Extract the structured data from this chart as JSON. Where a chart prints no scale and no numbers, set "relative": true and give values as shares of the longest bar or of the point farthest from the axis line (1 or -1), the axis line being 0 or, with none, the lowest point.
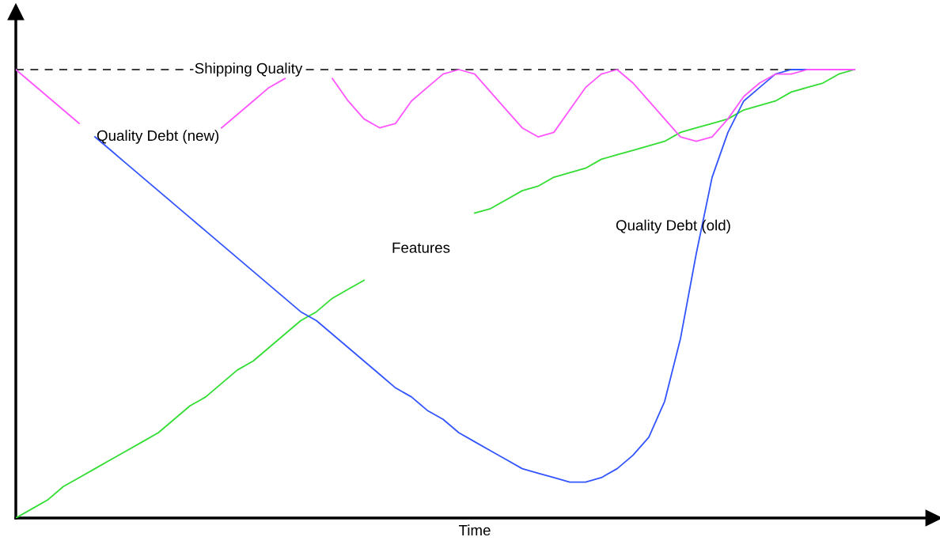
{
  "chart_data": {
    "type": "line",
    "relative": true,
    "xlabel": "Time",
    "categories": [
      null,
      null,
      null,
      null,
      null,
      null,
      null,
      null,
      null,
      null,
      null,
      null,
      null,
      null,
      null,
      null,
      null,
      null,
      null,
      null,
      null,
      null,
      null,
      null,
      null,
      null,
      null,
      null,
      null,
      null,
      null,
      null,
      null,
      null,
      null,
      null,
      null,
      null,
      null,
      null,
      null,
      null,
      null,
      null,
      null,
      null,
      null,
      null,
      null,
      null,
      null,
      null,
      null,
      null
    ],
    "series": [
      {
        "name": "Quality Debt (new)",
        "color": "#ff55ff",
        "values": [
          1,
          0.97,
          0.94,
          0.91,
          0.88,
          null,
          null,
          null,
          null,
          null,
          null,
          null,
          null,
          0.87,
          0.9,
          0.93,
          0.96,
          0.98,
          null,
          null,
          0.98,
          0.93,
          0.89,
          0.87,
          0.88,
          0.93,
          0.96,
          0.99,
          1,
          0.99,
          0.95,
          0.91,
          0.87,
          0.85,
          0.86,
          0.91,
          0.96,
          0.99,
          1,
          0.97,
          0.93,
          0.89,
          0.85,
          0.84,
          0.85,
          0.89,
          0.94,
          0.97,
          0.99,
          0.99,
          1,
          1,
          1,
          1
        ]
      },
      {
        "name": "Quality Debt (old)",
        "color": "#3355ff",
        "values": [
          null,
          null,
          null,
          null,
          null,
          0.85,
          0.82,
          0.79,
          0.76,
          0.73,
          0.7,
          0.67,
          0.64,
          0.61,
          0.58,
          0.55,
          0.52,
          0.49,
          0.46,
          0.44,
          0.41,
          0.38,
          0.35,
          0.32,
          0.29,
          0.27,
          0.24,
          0.22,
          0.19,
          0.17,
          0.15,
          0.13,
          0.11,
          0.1,
          0.09,
          0.08,
          0.08,
          0.09,
          0.11,
          0.14,
          0.18,
          0.26,
          0.4,
          0.59,
          0.76,
          0.86,
          0.93,
          0.96,
          0.99,
          1,
          1,
          null,
          null,
          null
        ]
      },
      {
        "name": "Features",
        "color": "#33dd33",
        "values": [
          0,
          0.02,
          0.04,
          0.07,
          0.09,
          0.11,
          0.13,
          0.15,
          0.17,
          0.19,
          0.22,
          0.25,
          0.27,
          0.3,
          0.33,
          0.35,
          0.38,
          0.41,
          0.44,
          0.46,
          0.49,
          0.51,
          0.53,
          null,
          null,
          null,
          null,
          null,
          null,
          0.68,
          0.69,
          0.71,
          0.73,
          0.74,
          0.76,
          0.77,
          0.78,
          0.8,
          0.81,
          0.82,
          0.83,
          0.84,
          0.86,
          0.87,
          0.88,
          0.89,
          0.91,
          0.92,
          0.93,
          0.95,
          0.96,
          0.97,
          0.99,
          1
        ]
      }
    ],
    "ref_lines": [
      {
        "axis": "y",
        "value": 1,
        "label": "Shipping Quality",
        "color": "#000000",
        "line_style": "dashed"
      }
    ],
    "tick_labels": false
  }
}
